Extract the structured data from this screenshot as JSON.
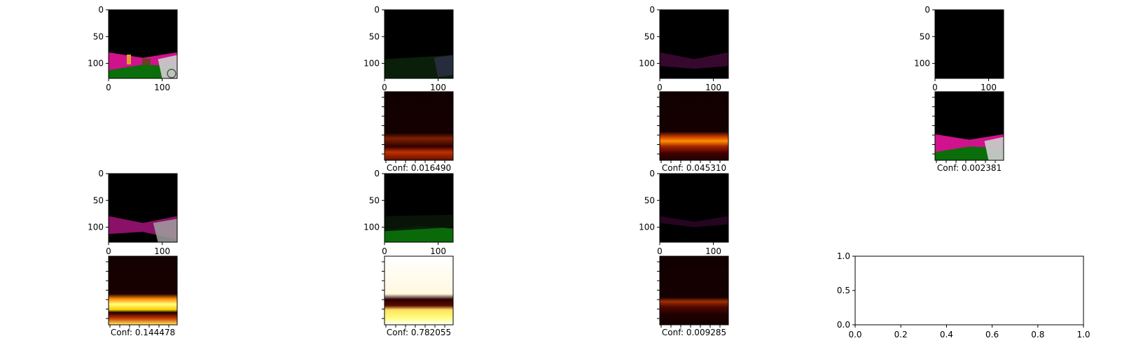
{
  "figure": {
    "background": "#ffffff",
    "axis_color": "#000000"
  },
  "chart_data": {
    "type": "image-grid",
    "rows": 4,
    "cols": 4,
    "image_axes": {
      "y_ticks": [
        "0",
        "50",
        "100"
      ],
      "x_ticks": [
        "0",
        "100"
      ]
    },
    "panels": [
      {
        "row": 0,
        "col": 0,
        "kind": "rgb",
        "content": "frame-scene",
        "show_y_ticks": true,
        "show_x_ticks": true
      },
      {
        "row": 0,
        "col": 1,
        "kind": "rgb",
        "content": "dark-green-mask",
        "show_y_ticks": true,
        "show_x_ticks": true
      },
      {
        "row": 0,
        "col": 2,
        "kind": "rgb",
        "content": "dark-magenta-mask",
        "show_y_ticks": true,
        "show_x_ticks": true
      },
      {
        "row": 0,
        "col": 3,
        "kind": "rgb",
        "content": "black",
        "show_y_ticks": true,
        "show_x_ticks": true
      },
      {
        "row": 1,
        "col": 1,
        "kind": "heatmap",
        "intensity": "low-bottom",
        "conf": "Conf: 0.016490"
      },
      {
        "row": 1,
        "col": 2,
        "kind": "heatmap",
        "intensity": "mid-band",
        "conf": "Conf: 0.045310"
      },
      {
        "row": 1,
        "col": 3,
        "kind": "rgb",
        "content": "scene-bright",
        "conf": "Conf: 0.002381"
      },
      {
        "row": 2,
        "col": 0,
        "kind": "rgb",
        "content": "magenta-gray-mask",
        "show_y_ticks": true,
        "show_x_ticks": true
      },
      {
        "row": 2,
        "col": 1,
        "kind": "rgb",
        "content": "green-mask",
        "show_y_ticks": true,
        "show_x_ticks": true
      },
      {
        "row": 2,
        "col": 2,
        "kind": "rgb",
        "content": "faint-magenta-mask",
        "show_y_ticks": true,
        "show_x_ticks": true
      },
      {
        "row": 3,
        "col": 0,
        "kind": "heatmap",
        "intensity": "bright-band",
        "conf": "Conf: 0.144478"
      },
      {
        "row": 3,
        "col": 1,
        "kind": "heatmap",
        "intensity": "saturated",
        "conf": "Conf: 0.782055"
      },
      {
        "row": 3,
        "col": 2,
        "kind": "heatmap",
        "intensity": "low-band",
        "conf": "Conf: 0.009285"
      }
    ],
    "empty_axes": {
      "row": 3,
      "col": 3,
      "xlim": [
        0.0,
        1.0
      ],
      "ylim": [
        0.0,
        1.0
      ],
      "x_ticks": [
        "0.0",
        "0.2",
        "0.4",
        "0.6",
        "0.8",
        "1.0"
      ],
      "y_ticks": [
        "0.0",
        "0.5",
        "1.0"
      ]
    }
  }
}
